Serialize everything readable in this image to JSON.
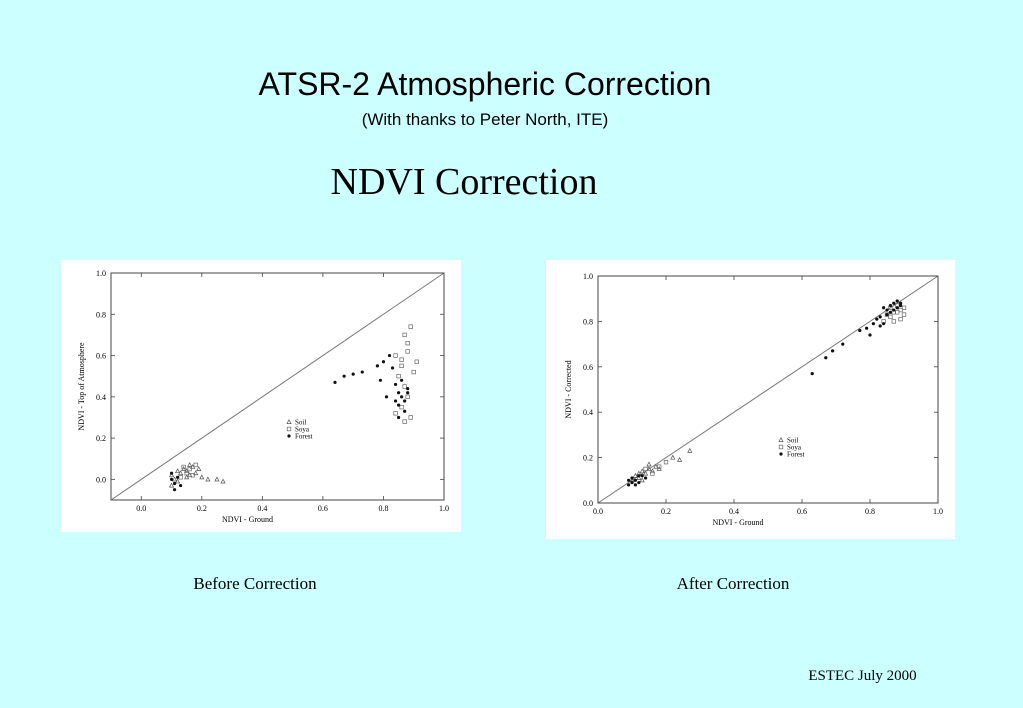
{
  "slide": {
    "title": "ATSR-2 Atmospheric Correction",
    "subtitle": "(With thanks to Peter North, ITE)",
    "heading": "NDVI Correction",
    "footer": "ESTEC July 2000"
  },
  "chart_data": [
    {
      "type": "scatter",
      "caption": "Before Correction",
      "xlabel": "NDVI - Ground",
      "ylabel": "NDVI - Top of Atmosphere",
      "xlim": [
        -0.1,
        1.0
      ],
      "ylim": [
        -0.1,
        1.0
      ],
      "xticks": [
        "0.0",
        "0.2",
        "0.4",
        "0.6",
        "0.8",
        "1.0"
      ],
      "yticks": [
        "0.0",
        "0.2",
        "0.4",
        "0.6",
        "0.8",
        "1.0"
      ],
      "reference_line": "1:1",
      "legend_placement": "center",
      "series": [
        {
          "name": "Soil",
          "marker": "triangle",
          "points": [
            [
              0.1,
              0.02
            ],
            [
              0.11,
              0.0
            ],
            [
              0.12,
              -0.01
            ],
            [
              0.1,
              -0.03
            ],
            [
              0.13,
              0.03
            ],
            [
              0.14,
              0.05
            ],
            [
              0.15,
              0.04
            ],
            [
              0.16,
              0.02
            ],
            [
              0.17,
              0.06
            ],
            [
              0.15,
              0.01
            ],
            [
              0.18,
              0.03
            ],
            [
              0.2,
              0.01
            ],
            [
              0.19,
              0.05
            ],
            [
              0.22,
              0.0
            ],
            [
              0.25,
              0.0
            ],
            [
              0.27,
              -0.01
            ],
            [
              0.12,
              0.04
            ],
            [
              0.16,
              0.07
            ]
          ]
        },
        {
          "name": "Soya",
          "marker": "square",
          "points": [
            [
              0.14,
              0.06
            ],
            [
              0.16,
              0.05
            ],
            [
              0.18,
              0.07
            ],
            [
              0.15,
              0.03
            ],
            [
              0.13,
              0.01
            ],
            [
              0.17,
              0.02
            ],
            [
              0.84,
              0.6
            ],
            [
              0.86,
              0.55
            ],
            [
              0.88,
              0.62
            ],
            [
              0.87,
              0.7
            ],
            [
              0.89,
              0.74
            ],
            [
              0.85,
              0.5
            ],
            [
              0.87,
              0.45
            ],
            [
              0.88,
              0.4
            ],
            [
              0.86,
              0.35
            ],
            [
              0.84,
              0.32
            ],
            [
              0.87,
              0.28
            ],
            [
              0.89,
              0.3
            ],
            [
              0.9,
              0.52
            ],
            [
              0.91,
              0.57
            ],
            [
              0.88,
              0.66
            ],
            [
              0.86,
              0.58
            ]
          ]
        },
        {
          "name": "Forest",
          "marker": "star",
          "points": [
            [
              0.1,
              0.0
            ],
            [
              0.11,
              -0.02
            ],
            [
              0.12,
              0.01
            ],
            [
              0.1,
              0.03
            ],
            [
              0.13,
              -0.03
            ],
            [
              0.11,
              -0.05
            ],
            [
              0.64,
              0.47
            ],
            [
              0.67,
              0.5
            ],
            [
              0.7,
              0.51
            ],
            [
              0.73,
              0.52
            ],
            [
              0.78,
              0.55
            ],
            [
              0.8,
              0.57
            ],
            [
              0.83,
              0.54
            ],
            [
              0.82,
              0.6
            ],
            [
              0.84,
              0.46
            ],
            [
              0.85,
              0.42
            ],
            [
              0.86,
              0.4
            ],
            [
              0.87,
              0.38
            ],
            [
              0.85,
              0.36
            ],
            [
              0.88,
              0.44
            ],
            [
              0.86,
              0.48
            ],
            [
              0.84,
              0.38
            ],
            [
              0.87,
              0.33
            ],
            [
              0.85,
              0.3
            ],
            [
              0.88,
              0.42
            ],
            [
              0.79,
              0.48
            ],
            [
              0.81,
              0.4
            ]
          ]
        }
      ]
    },
    {
      "type": "scatter",
      "caption": "After Correction",
      "xlabel": "NDVI - Ground",
      "ylabel": "NDVI - Corrected",
      "xlim": [
        0.0,
        1.0
      ],
      "ylim": [
        0.0,
        1.0
      ],
      "xticks": [
        "0.0",
        "0.2",
        "0.4",
        "0.6",
        "0.8",
        "1.0"
      ],
      "yticks": [
        "0.0",
        "0.2",
        "0.4",
        "0.6",
        "0.8",
        "1.0"
      ],
      "reference_line": "1:1",
      "legend_placement": "center",
      "series": [
        {
          "name": "Soil",
          "marker": "triangle",
          "points": [
            [
              0.1,
              0.1
            ],
            [
              0.11,
              0.12
            ],
            [
              0.12,
              0.11
            ],
            [
              0.13,
              0.14
            ],
            [
              0.14,
              0.13
            ],
            [
              0.15,
              0.15
            ],
            [
              0.16,
              0.14
            ],
            [
              0.17,
              0.16
            ],
            [
              0.18,
              0.15
            ],
            [
              0.15,
              0.17
            ],
            [
              0.13,
              0.1
            ],
            [
              0.12,
              0.13
            ],
            [
              0.22,
              0.2
            ],
            [
              0.24,
              0.19
            ],
            [
              0.27,
              0.23
            ]
          ]
        },
        {
          "name": "Soya",
          "marker": "square",
          "points": [
            [
              0.14,
              0.15
            ],
            [
              0.16,
              0.13
            ],
            [
              0.18,
              0.16
            ],
            [
              0.2,
              0.18
            ],
            [
              0.85,
              0.83
            ],
            [
              0.86,
              0.86
            ],
            [
              0.87,
              0.84
            ],
            [
              0.88,
              0.87
            ],
            [
              0.89,
              0.85
            ],
            [
              0.9,
              0.83
            ],
            [
              0.87,
              0.8
            ],
            [
              0.86,
              0.82
            ],
            [
              0.89,
              0.81
            ],
            [
              0.88,
              0.84
            ],
            [
              0.84,
              0.8
            ],
            [
              0.9,
              0.86
            ]
          ]
        },
        {
          "name": "Forest",
          "marker": "star",
          "points": [
            [
              0.09,
              0.08
            ],
            [
              0.1,
              0.09
            ],
            [
              0.1,
              0.11
            ],
            [
              0.11,
              0.1
            ],
            [
              0.12,
              0.09
            ],
            [
              0.13,
              0.12
            ],
            [
              0.11,
              0.08
            ],
            [
              0.09,
              0.1
            ],
            [
              0.12,
              0.12
            ],
            [
              0.14,
              0.11
            ],
            [
              0.63,
              0.57
            ],
            [
              0.67,
              0.64
            ],
            [
              0.69,
              0.67
            ],
            [
              0.72,
              0.7
            ],
            [
              0.77,
              0.76
            ],
            [
              0.79,
              0.77
            ],
            [
              0.81,
              0.79
            ],
            [
              0.82,
              0.81
            ],
            [
              0.83,
              0.78
            ],
            [
              0.84,
              0.79
            ],
            [
              0.85,
              0.85
            ],
            [
              0.86,
              0.87
            ],
            [
              0.87,
              0.88
            ],
            [
              0.88,
              0.86
            ],
            [
              0.89,
              0.88
            ],
            [
              0.85,
              0.83
            ],
            [
              0.86,
              0.84
            ],
            [
              0.87,
              0.85
            ],
            [
              0.88,
              0.89
            ],
            [
              0.89,
              0.87
            ],
            [
              0.84,
              0.86
            ],
            [
              0.83,
              0.82
            ],
            [
              0.8,
              0.74
            ]
          ]
        }
      ]
    }
  ]
}
